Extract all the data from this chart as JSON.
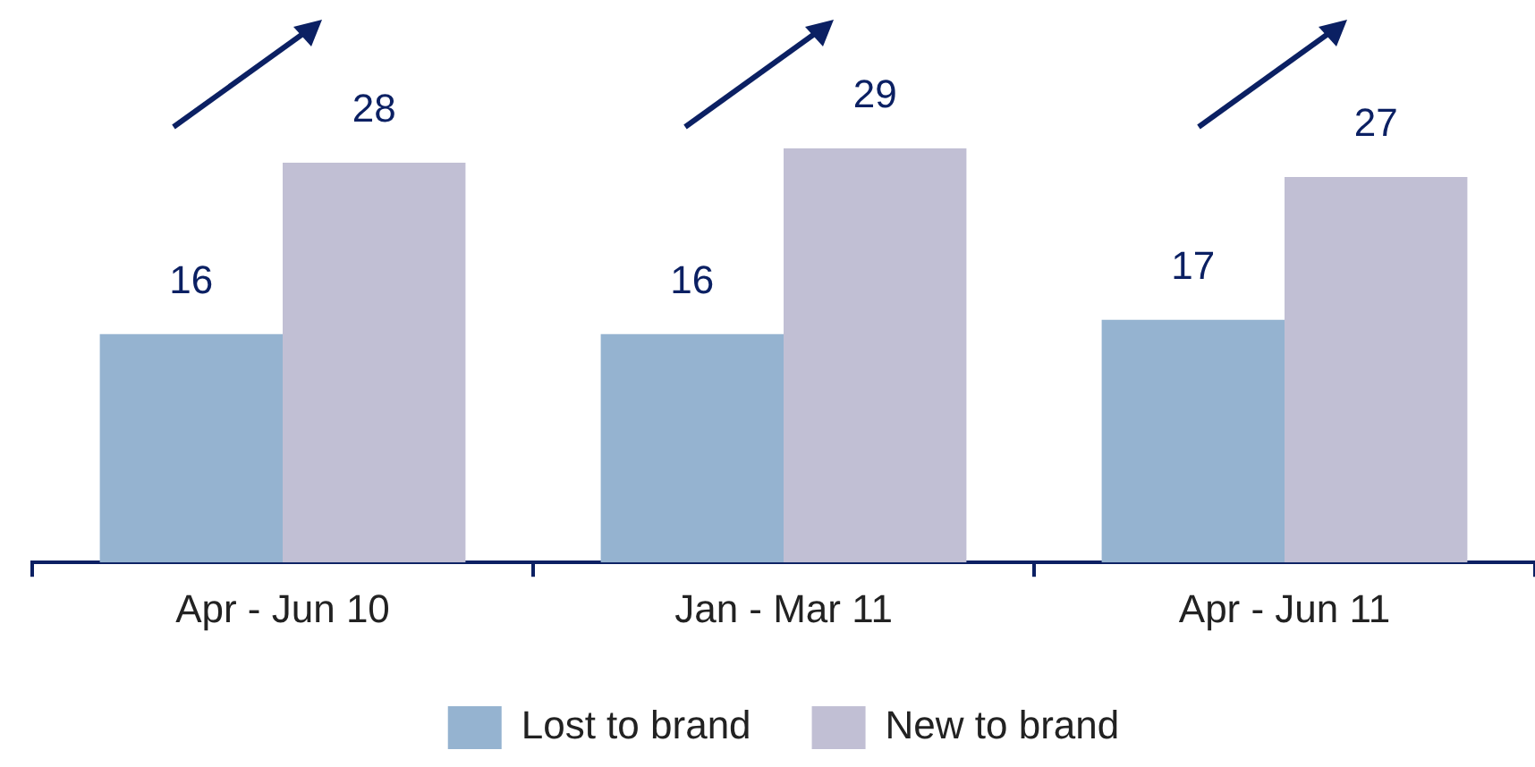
{
  "chart_data": {
    "type": "bar",
    "categories": [
      "Apr - Jun 10",
      "Jan - Mar 11",
      "Apr - Jun 11"
    ],
    "series": [
      {
        "name": "Lost to brand",
        "color": "#95b3d0",
        "values": [
          16,
          16,
          17
        ]
      },
      {
        "name": "New to brand",
        "color": "#c1bfd4",
        "values": [
          28,
          29,
          27
        ]
      }
    ],
    "data_labels": true,
    "legend": "bottom",
    "grid": false
  }
}
